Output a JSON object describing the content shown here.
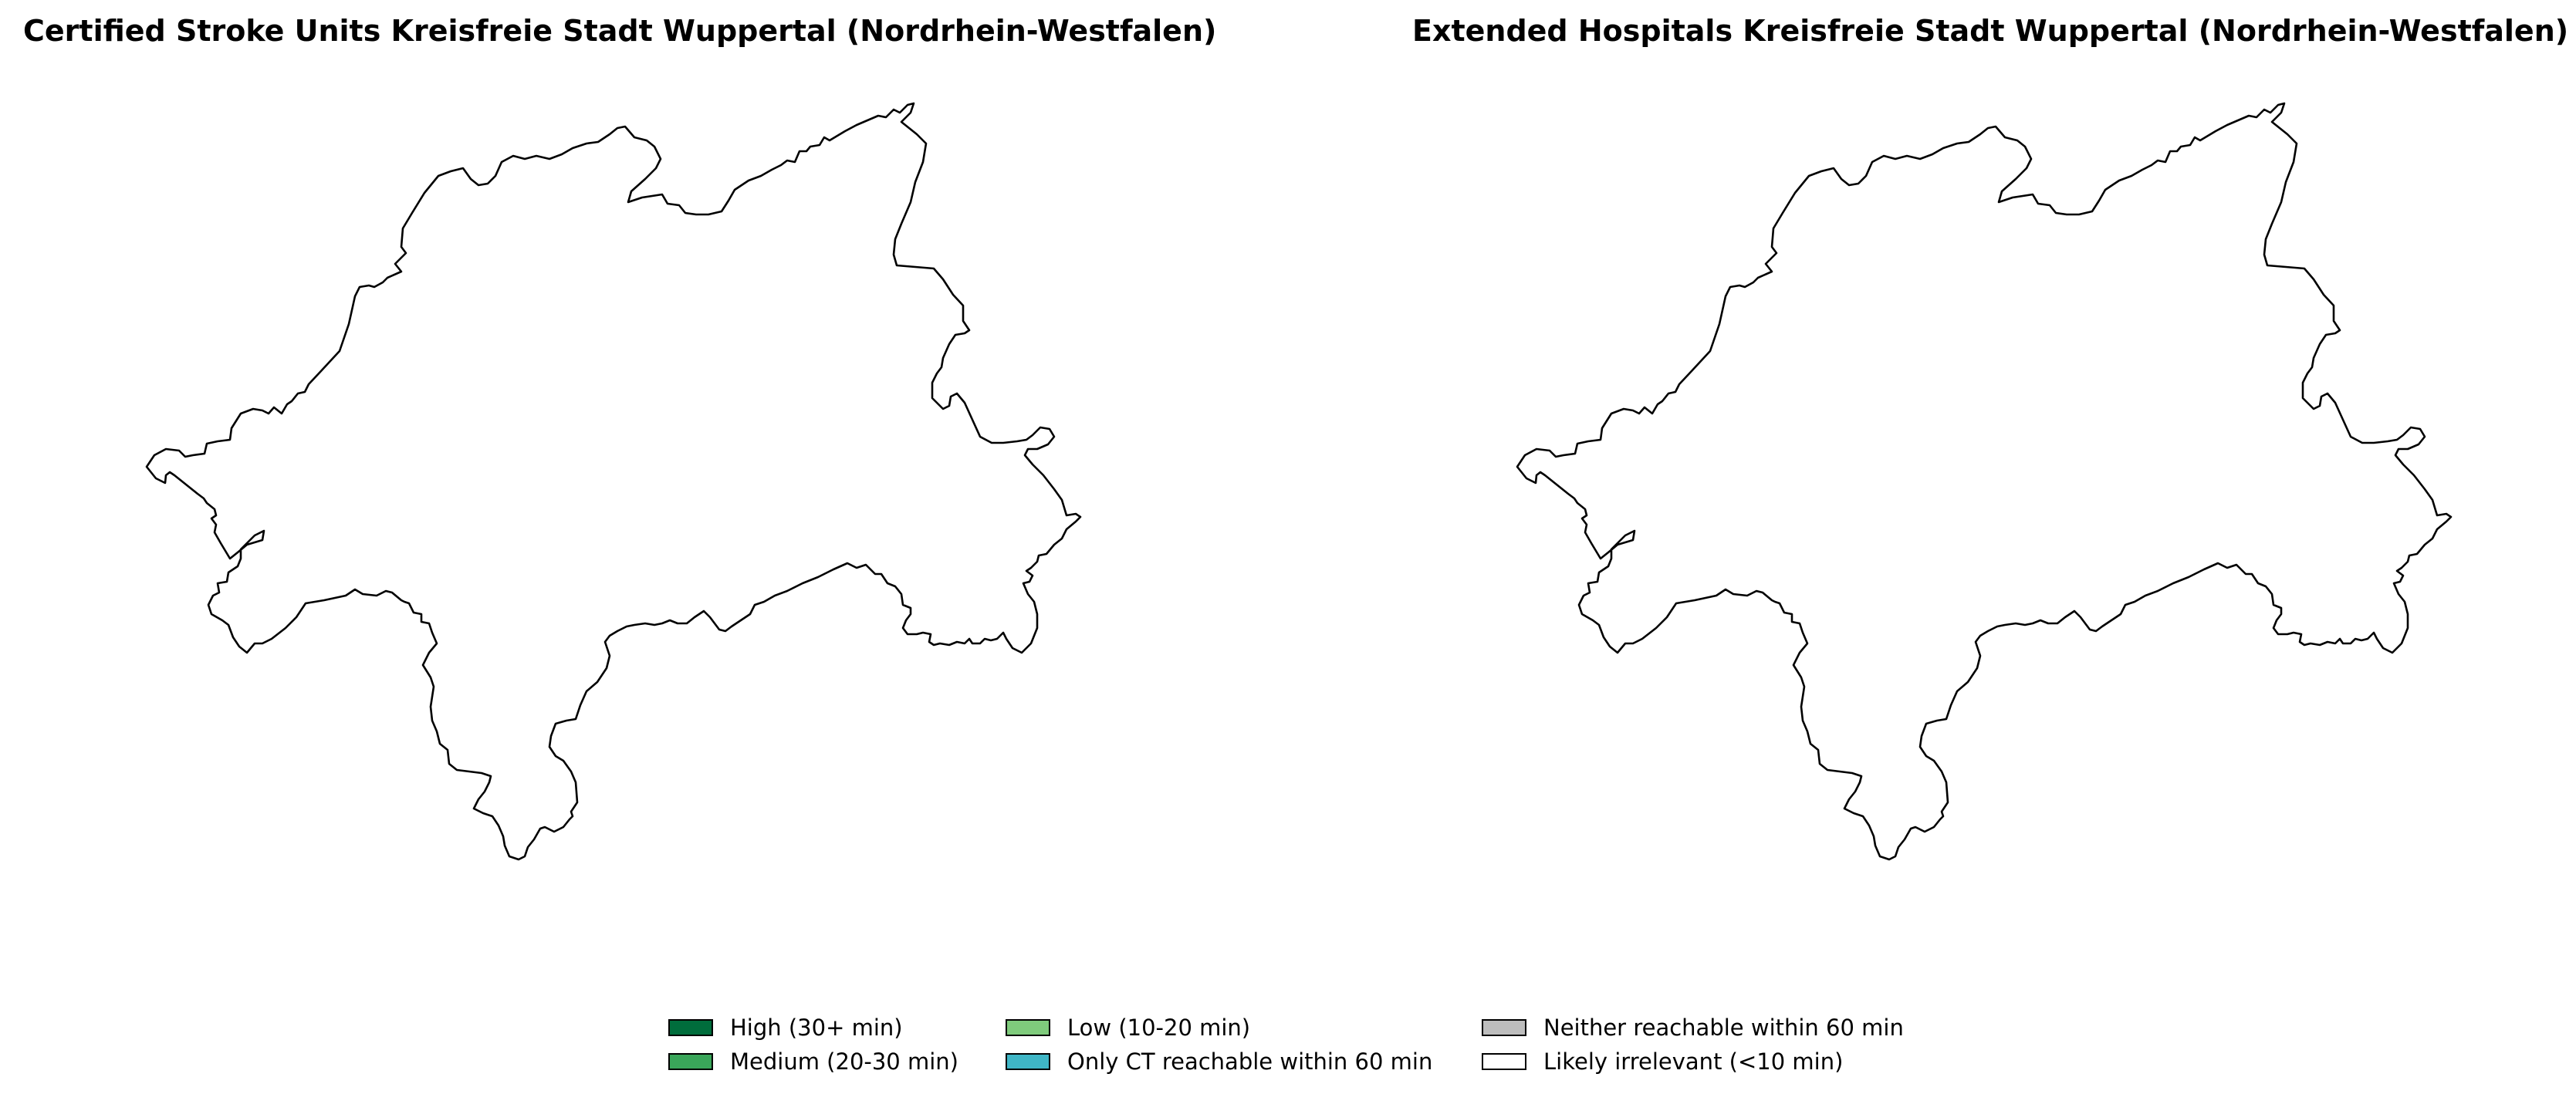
{
  "maps": [
    {
      "title": "Certified Stroke Units Kreisfreie Stadt Wuppertal (Nordrhein-Westfalen)",
      "region": "Kreisfreie Stadt Wuppertal"
    },
    {
      "title": "Extended Hospitals Kreisfreie Stadt Wuppertal (Nordrhein-Westfalen)",
      "region": "Kreisfreie Stadt Wuppertal"
    }
  ],
  "legend": {
    "items": [
      {
        "label": "High (30+ min)",
        "color": "#006d3c"
      },
      {
        "label": "Medium (20-30 min)",
        "color": "#3aa65a"
      },
      {
        "label": "Low (10-20 min)",
        "color": "#7fcb7c"
      },
      {
        "label": "Only CT reachable within 60 min",
        "color": "#3fb6c6"
      },
      {
        "label": "Neither reachable within 60 min",
        "color": "#bdbdbd"
      },
      {
        "label": "Likely irrelevant (<10 min)",
        "color": "#ffffff"
      }
    ]
  }
}
